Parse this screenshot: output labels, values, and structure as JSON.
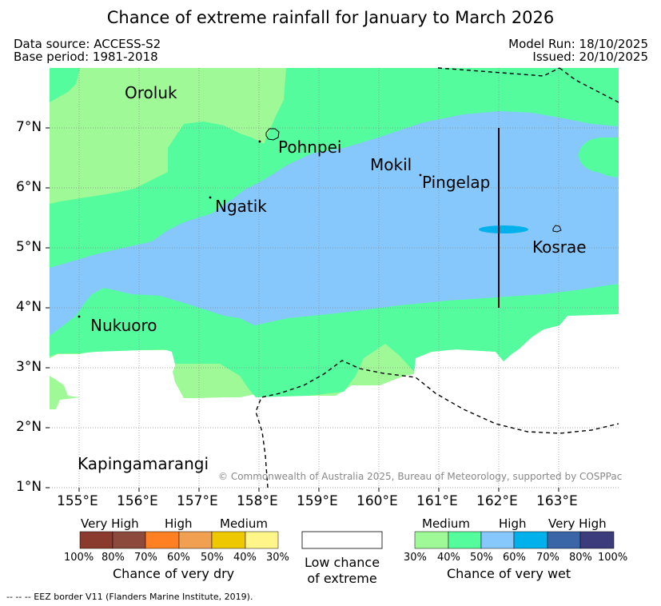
{
  "header": {
    "title": "Chance of extreme rainfall for January to March 2026",
    "data_source": "Data source: ACCESS-S2",
    "base_period": "Base period: 1981-2018",
    "model_run": "Model Run: 18/10/2025",
    "issued": "Issued: 20/10/2025"
  },
  "map": {
    "lat_ticks": [
      "7°N",
      "6°N",
      "5°N",
      "4°N",
      "3°N",
      "2°N",
      "1°N"
    ],
    "lon_ticks": [
      "155°E",
      "156°E",
      "157°E",
      "158°E",
      "159°E",
      "160°E",
      "161°E",
      "162°E",
      "163°E"
    ],
    "places": {
      "oroluk": "Oroluk",
      "pohnpei": "Pohnpei",
      "mokil": "Mokil",
      "pingelap": "Pingelap",
      "ngatik": "Ngatik",
      "kosrae": "Kosrae",
      "nukuoro": "Nukuoro",
      "kapingamarangi": "Kapingamarangi"
    },
    "copyright": "© Commonwealth of Australia 2025, Bureau of Meteorology, supported by COSPPac"
  },
  "legend": {
    "dry": {
      "categories": [
        "Very High",
        "High",
        "Medium"
      ],
      "percents": [
        "100%",
        "80%",
        "70%",
        "60%",
        "50%",
        "40%",
        "30%"
      ],
      "colors": [
        "#8b3a2e",
        "#8b4a3c",
        "#ff8022",
        "#f0a050",
        "#eec800",
        "#fff589"
      ],
      "caption": "Chance of very dry"
    },
    "low": {
      "caption_line1": "Low chance",
      "caption_line2": "of extreme"
    },
    "wet": {
      "categories": [
        "Medium",
        "High",
        "Very High"
      ],
      "percents": [
        "30%",
        "40%",
        "50%",
        "60%",
        "70%",
        "80%",
        "100%"
      ],
      "colors": [
        "#9ef996",
        "#55fc9e",
        "#86c8fb",
        "#00b1ec",
        "#3a66a8",
        "#3c3c7c"
      ],
      "caption": "Chance of very wet"
    }
  },
  "footnote": "-- -- -- EEZ border V11 (Flanders Marine Institute, 2019).",
  "colors": {
    "medium_wet": "#9ef996",
    "mid_wet": "#55fc9e",
    "high_wet": "#86c8fb",
    "higher_wet": "#00b1ec"
  }
}
